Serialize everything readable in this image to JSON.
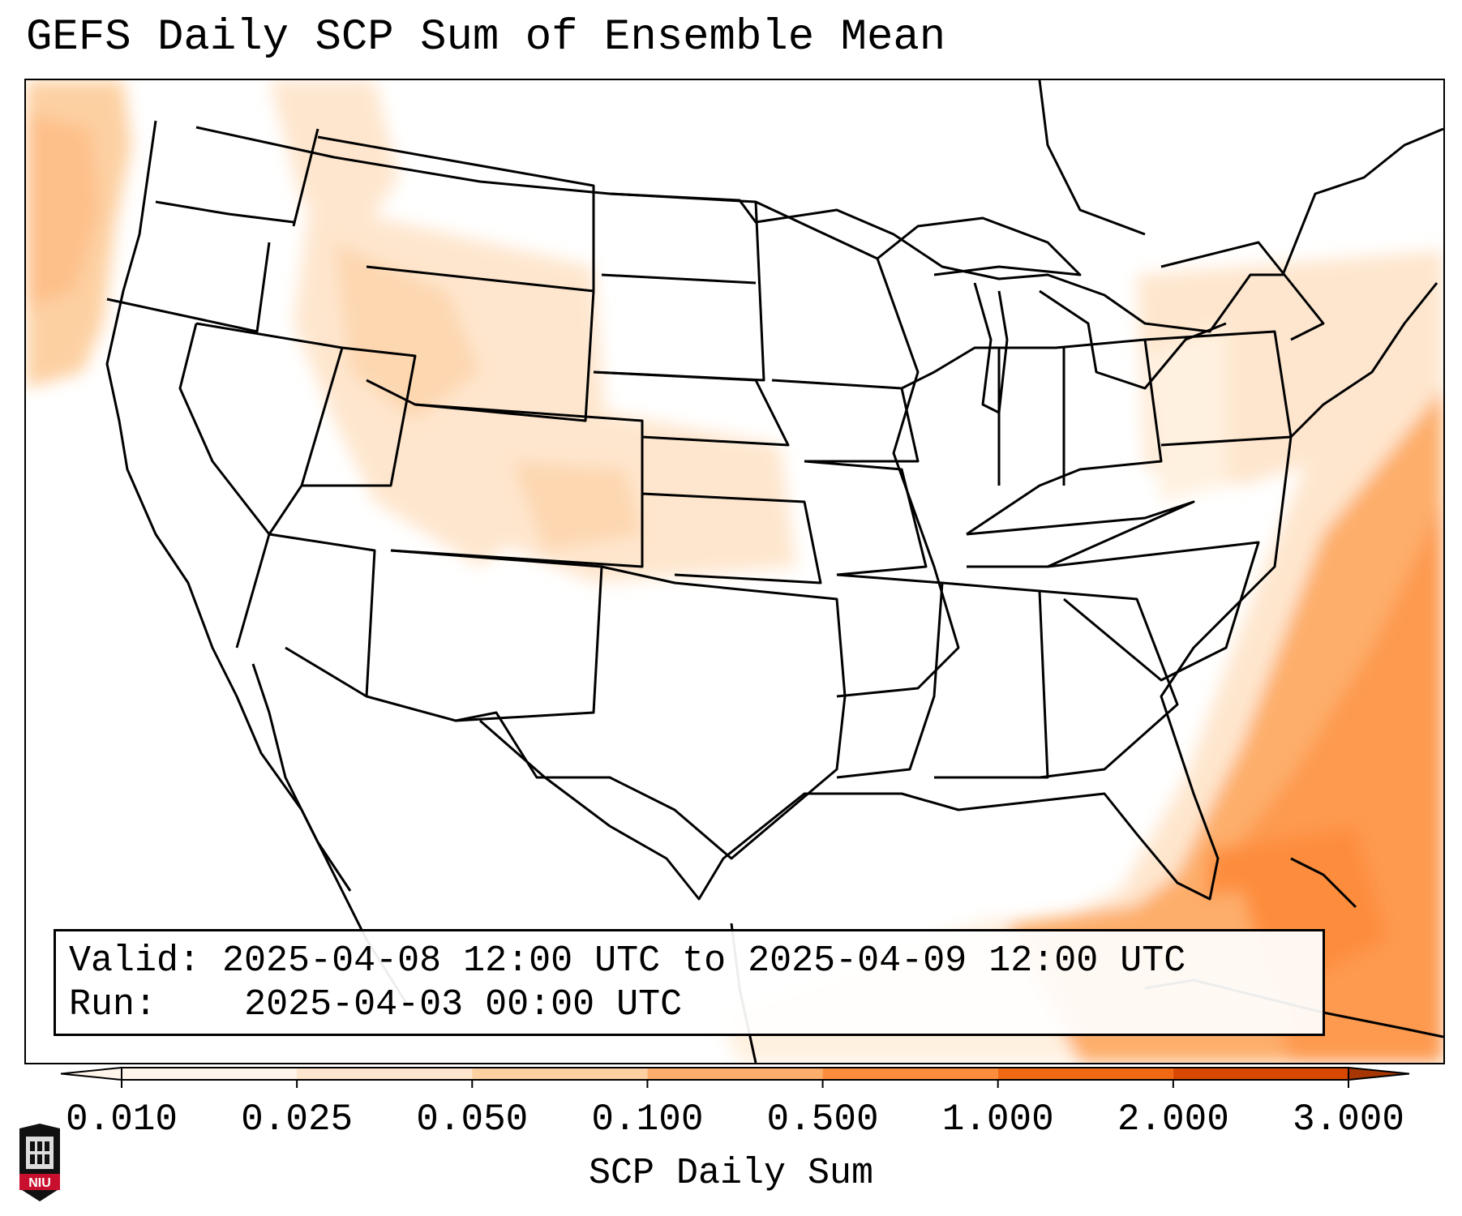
{
  "title": "GEFS Daily SCP Sum of Ensemble Mean",
  "info": {
    "valid_label": "Valid:",
    "valid_value": "2025-04-08 12:00 UTC to 2025-04-09 12:00 UTC",
    "run_label": "Run:",
    "run_value": "2025-04-03 00:00 UTC"
  },
  "colorbar": {
    "label": "SCP Daily Sum",
    "ticks": [
      "0.010",
      "0.025",
      "0.050",
      "0.100",
      "0.500",
      "1.000",
      "2.000",
      "3.000"
    ],
    "colors": [
      "#fff5eb",
      "#fee6ce",
      "#fdd0a2",
      "#fdae6b",
      "#fd8d3c",
      "#f16913",
      "#d94801",
      "#a63603"
    ],
    "extend": "both"
  },
  "logo": {
    "text": "NIU",
    "color": "#c8102e"
  }
}
